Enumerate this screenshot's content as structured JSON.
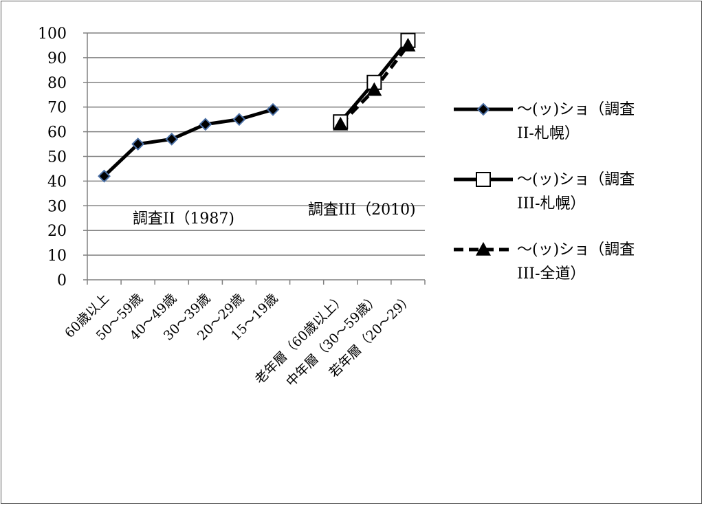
{
  "chart_data": {
    "type": "line",
    "categories": [
      "60歳以上",
      "50～59歳",
      "40～49歳",
      "30～39歳",
      "20～29歳",
      "15～19歳",
      "",
      "老年層（60歳以上）",
      "中年層（30～59歳）",
      "若年層（20～29）"
    ],
    "series": [
      {
        "name": "～(ッ)ショ（調査II-札幌）",
        "values": [
          42,
          55,
          57,
          63,
          65,
          69,
          null,
          null,
          null,
          null
        ],
        "line": "solid",
        "marker": "diamond"
      },
      {
        "name": "～(ッ)ショ（調査III-札幌）",
        "values": [
          null,
          null,
          null,
          null,
          null,
          null,
          null,
          64,
          80,
          97
        ],
        "line": "solid",
        "marker": "square-open"
      },
      {
        "name": "～(ッ)ショ（調査III-全道）",
        "values": [
          null,
          null,
          null,
          null,
          null,
          null,
          null,
          63,
          77,
          95
        ],
        "line": "dashed",
        "marker": "triangle"
      }
    ],
    "ylim": [
      0,
      100
    ],
    "yticks": [
      0,
      10,
      20,
      30,
      40,
      50,
      60,
      70,
      80,
      90,
      100
    ],
    "grid": true,
    "legend_position": "right",
    "annotations": [
      "調査II（1987)",
      "調査III（2010)"
    ],
    "legend_lines": [
      [
        "～(ッ)ショ（調査",
        "II-札幌）"
      ],
      [
        "～(ッ)ショ（調査",
        "III-札幌）"
      ],
      [
        "～(ッ)ショ（調査",
        "III-全道）"
      ]
    ],
    "colors": {
      "line": "#000000",
      "grid": "#808080",
      "diamond_fill": "#000000",
      "diamond_stroke": "#4a6fa5"
    }
  }
}
